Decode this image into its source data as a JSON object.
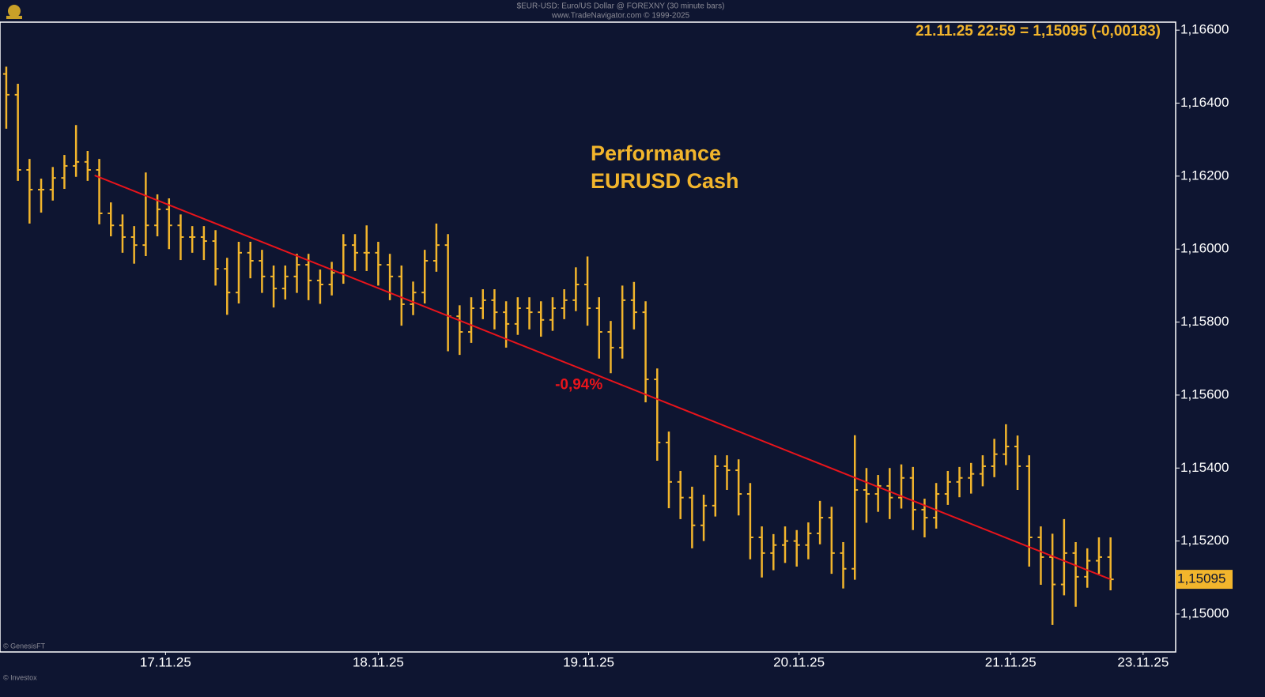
{
  "header": {
    "line1": "$EUR-USD: Euro/US Dollar @ FOREXNY  (30 minute bars)",
    "line2": "www.TradeNavigator.com © 1999-2025"
  },
  "footer": {
    "left1": "© GenesisFT",
    "left2": "© Investox"
  },
  "chart_data": {
    "type": "ohlc",
    "annotation": [
      "Performance",
      "EURUSD Cash"
    ],
    "status": "21.11.25 22:59 = 1,15095 (-0,00183)",
    "last_price": {
      "value": 1.15095,
      "label": "1,15095"
    },
    "color": "#f2b52c",
    "grid": false,
    "ylim": [
      1.14896,
      1.16622
    ],
    "yticks": [
      {
        "value": 1.15,
        "label": "1,15000"
      },
      {
        "value": 1.152,
        "label": "1,15200"
      },
      {
        "value": 1.154,
        "label": "1,15400"
      },
      {
        "value": 1.156,
        "label": "1,15600"
      },
      {
        "value": 1.158,
        "label": "1,15800"
      },
      {
        "value": 1.16,
        "label": "1,16000"
      },
      {
        "value": 1.162,
        "label": "1,16200"
      },
      {
        "value": 1.164,
        "label": "1,16400"
      },
      {
        "value": 1.166,
        "label": "1,16600"
      }
    ],
    "xlim": [
      -0.54,
      100.6
    ],
    "xticks": [
      {
        "value": 13.7,
        "label": "17.11.25"
      },
      {
        "value": 32.0,
        "label": "18.11.25"
      },
      {
        "value": 50.1,
        "label": "19.11.25"
      },
      {
        "value": 68.2,
        "label": "20.11.25"
      },
      {
        "value": 86.4,
        "label": "21.11.25"
      },
      {
        "value": 97.8,
        "label": "23.11.25"
      }
    ],
    "open": [
      1.1648,
      1.16423,
      1.16217,
      1.16163,
      1.16163,
      1.16195,
      1.16228,
      1.16239,
      1.16217,
      1.16098,
      1.16065,
      1.16033,
      1.16011,
      1.16065,
      1.16109,
      1.16065,
      1.16033,
      1.16033,
      1.16022,
      1.15946,
      1.15881,
      1.1599,
      1.15968,
      1.15925,
      1.15892,
      1.15925,
      1.15957,
      1.15914,
      1.15903,
      1.15935,
      1.16011,
      1.1599,
      1.1599,
      1.15957,
      1.15925,
      1.15849,
      1.15881,
      1.15968,
      1.16011,
      1.15816,
      1.15773,
      1.15838,
      1.1586,
      1.15827,
      1.15795,
      1.15838,
      1.15827,
      1.15806,
      1.15838,
      1.1586,
      1.15903,
      1.15838,
      1.15773,
      1.1573,
      1.1586,
      1.15827,
      1.15643,
      1.1547,
      1.15362,
      1.15319,
      1.15243,
      1.15297,
      1.15405,
      1.15394,
      1.15329,
      1.1521,
      1.15167,
      1.15189,
      1.152,
      1.15189,
      1.15221,
      1.15264,
      1.15167,
      1.15124,
      1.1534,
      1.15329,
      1.15351,
      1.15319,
      1.15373,
      1.15286,
      1.15264,
      1.15329,
      1.15362,
      1.15373,
      1.15384,
      1.15405,
      1.15438,
      1.15459,
      1.15405,
      1.1521,
      1.15156,
      1.15081,
      1.15167,
      1.15102,
      1.15146,
      1.15156
    ],
    "high": [
      1.165,
      1.16453,
      1.16247,
      1.16193,
      1.16225,
      1.16258,
      1.1634,
      1.16269,
      1.16247,
      1.16128,
      1.16095,
      1.16063,
      1.1621,
      1.1615,
      1.16139,
      1.16095,
      1.16063,
      1.16063,
      1.16052,
      1.15976,
      1.1602,
      1.1602,
      1.15998,
      1.15955,
      1.15955,
      1.15987,
      1.15987,
      1.15944,
      1.15965,
      1.16041,
      1.16041,
      1.16065,
      1.1602,
      1.15987,
      1.15955,
      1.15911,
      1.15998,
      1.1607,
      1.16041,
      1.15846,
      1.15868,
      1.1589,
      1.1589,
      1.15857,
      1.15868,
      1.15868,
      1.15857,
      1.15868,
      1.1589,
      1.1595,
      1.1598,
      1.15868,
      1.15803,
      1.159,
      1.1591,
      1.15857,
      1.15673,
      1.155,
      1.15392,
      1.15349,
      1.15327,
      1.15435,
      1.15435,
      1.15424,
      1.15359,
      1.1524,
      1.15219,
      1.1524,
      1.1523,
      1.15251,
      1.1531,
      1.15294,
      1.15197,
      1.1549,
      1.154,
      1.15381,
      1.154,
      1.1541,
      1.15403,
      1.15316,
      1.15359,
      1.15392,
      1.15403,
      1.15414,
      1.15435,
      1.1548,
      1.1552,
      1.15489,
      1.15435,
      1.1524,
      1.1522,
      1.1526,
      1.15197,
      1.1518,
      1.1521,
      1.1521
    ],
    "low": [
      1.1633,
      1.16187,
      1.1607,
      1.161,
      1.16133,
      1.16165,
      1.16198,
      1.16187,
      1.16068,
      1.16035,
      1.1599,
      1.1596,
      1.15981,
      1.16035,
      1.16,
      1.1597,
      1.1599,
      1.1597,
      1.159,
      1.1582,
      1.15851,
      1.1592,
      1.1588,
      1.1584,
      1.15862,
      1.1588,
      1.1586,
      1.1585,
      1.15873,
      1.15905,
      1.1594,
      1.1594,
      1.159,
      1.1586,
      1.1579,
      1.15819,
      1.15851,
      1.15938,
      1.1572,
      1.1571,
      1.15743,
      1.15808,
      1.1578,
      1.1573,
      1.15765,
      1.1578,
      1.1576,
      1.15776,
      1.15808,
      1.1583,
      1.1579,
      1.157,
      1.1566,
      1.157,
      1.1578,
      1.1558,
      1.1542,
      1.1529,
      1.1526,
      1.1518,
      1.152,
      1.15267,
      1.1534,
      1.1527,
      1.1515,
      1.151,
      1.1512,
      1.1514,
      1.1513,
      1.1515,
      1.15191,
      1.1511,
      1.1507,
      1.15094,
      1.1525,
      1.1528,
      1.1526,
      1.15289,
      1.1523,
      1.1521,
      1.15234,
      1.15299,
      1.1532,
      1.1533,
      1.1535,
      1.15375,
      1.15408,
      1.1534,
      1.1513,
      1.1508,
      1.1497,
      1.15051,
      1.1502,
      1.15072,
      1.1511,
      1.15065
    ],
    "close": [
      1.16423,
      1.16217,
      1.16163,
      1.16163,
      1.16195,
      1.16228,
      1.16239,
      1.16217,
      1.16098,
      1.16065,
      1.16033,
      1.16011,
      1.16065,
      1.16109,
      1.16065,
      1.16033,
      1.16033,
      1.16022,
      1.15946,
      1.15881,
      1.1599,
      1.15968,
      1.15925,
      1.15892,
      1.15925,
      1.15957,
      1.15914,
      1.15903,
      1.15935,
      1.16011,
      1.1599,
      1.1599,
      1.15957,
      1.15925,
      1.15849,
      1.15881,
      1.15968,
      1.16011,
      1.15816,
      1.15773,
      1.15838,
      1.1586,
      1.15827,
      1.15795,
      1.15838,
      1.15827,
      1.15806,
      1.15838,
      1.1586,
      1.15903,
      1.15838,
      1.15773,
      1.1573,
      1.1586,
      1.15827,
      1.15643,
      1.1547,
      1.15362,
      1.15319,
      1.15243,
      1.15297,
      1.15405,
      1.15394,
      1.15329,
      1.1521,
      1.15167,
      1.15189,
      1.152,
      1.15189,
      1.15221,
      1.15264,
      1.15167,
      1.15124,
      1.1534,
      1.15329,
      1.15351,
      1.15319,
      1.15373,
      1.15286,
      1.15264,
      1.15329,
      1.15362,
      1.15373,
      1.15384,
      1.15405,
      1.15438,
      1.15459,
      1.15405,
      1.1521,
      1.15156,
      1.15081,
      1.15167,
      1.15102,
      1.15146,
      1.15156,
      1.15095
    ],
    "trendline": {
      "x": [
        7.6,
        95
      ],
      "y": [
        1.16202,
        1.15095
      ],
      "color": "#e8141b",
      "label": "-0,94%"
    }
  }
}
